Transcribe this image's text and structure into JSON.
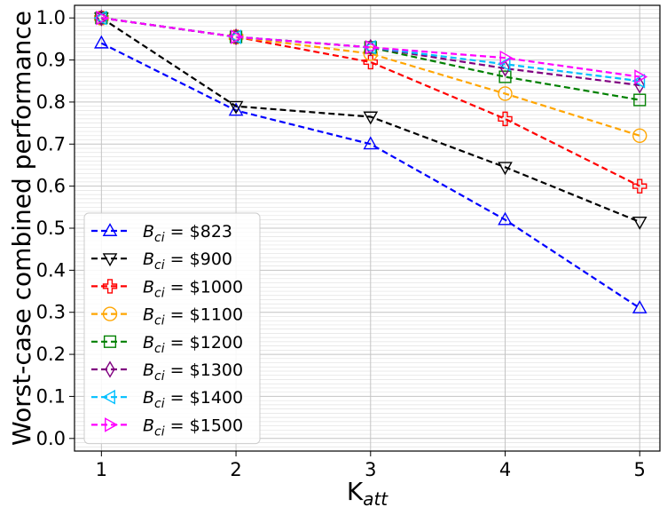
{
  "chart_data": {
    "type": "line",
    "xlabel": "K",
    "xlabel_sub": "att",
    "ylabel": "Worst-case combined performance",
    "xlim": [
      0.8,
      5.15
    ],
    "ylim": [
      -0.03,
      1.03
    ],
    "x": [
      1,
      2,
      3,
      4,
      5
    ],
    "x_ticks": [
      1,
      2,
      3,
      4,
      5
    ],
    "y_ticks": [
      0.0,
      0.1,
      0.2,
      0.3,
      0.4,
      0.5,
      0.6,
      0.7,
      0.8,
      0.9,
      1.0
    ],
    "grid": true,
    "legend_position": "bottom-left",
    "series": [
      {
        "name_base": "B",
        "name_sub": "ci",
        "name_value": " = $823",
        "marker": "triangle-up",
        "color": "#0000ff",
        "values": [
          0.94,
          0.78,
          0.7,
          0.52,
          0.31
        ]
      },
      {
        "name_base": "B",
        "name_sub": "ci",
        "name_value": " = $900",
        "marker": "triangle-down",
        "color": "#000000",
        "values": [
          1.0,
          0.79,
          0.765,
          0.645,
          0.515
        ]
      },
      {
        "name_base": "B",
        "name_sub": "ci",
        "name_value": " = $1000",
        "marker": "plus",
        "color": "#ff0000",
        "values": [
          1.0,
          0.955,
          0.895,
          0.76,
          0.6
        ]
      },
      {
        "name_base": "B",
        "name_sub": "ci",
        "name_value": " = $1100",
        "marker": "circle",
        "color": "#ffa500",
        "values": [
          1.0,
          0.955,
          0.915,
          0.82,
          0.72
        ]
      },
      {
        "name_base": "B",
        "name_sub": "ci",
        "name_value": " = $1200",
        "marker": "square",
        "color": "#008000",
        "values": [
          1.0,
          0.955,
          0.93,
          0.86,
          0.805
        ]
      },
      {
        "name_base": "B",
        "name_sub": "ci",
        "name_value": " = $1300",
        "marker": "diamond",
        "color": "#800080",
        "values": [
          1.0,
          0.955,
          0.93,
          0.88,
          0.84
        ]
      },
      {
        "name_base": "B",
        "name_sub": "ci",
        "name_value": " = $1400",
        "marker": "triangle-left",
        "color": "#00bfff",
        "values": [
          1.0,
          0.955,
          0.93,
          0.89,
          0.85
        ]
      },
      {
        "name_base": "B",
        "name_sub": "ci",
        "name_value": " = $1500",
        "marker": "triangle-right",
        "color": "#ff00ff",
        "values": [
          1.0,
          0.955,
          0.93,
          0.905,
          0.86
        ]
      }
    ]
  }
}
